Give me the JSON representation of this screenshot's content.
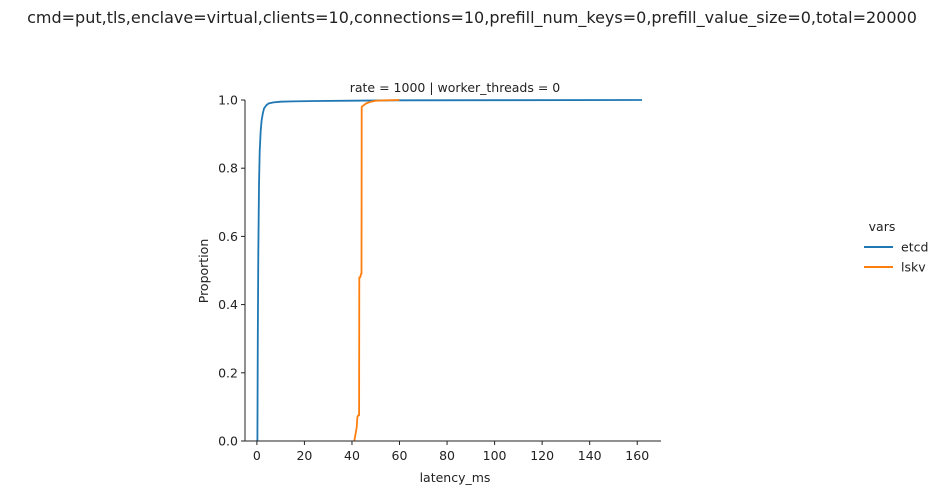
{
  "chart_data": {
    "type": "line",
    "title": "cmd=put,tls,enclave=virtual,clients=10,connections=10,prefill_num_keys=0,prefill_value_size=0,total=20000",
    "subtitle": "rate = 1000 | worker_threads = 0",
    "xlabel": "latency_ms",
    "ylabel": "Proportion",
    "xlim": [
      -5,
      170
    ],
    "ylim": [
      0,
      1
    ],
    "xticks": [
      0,
      20,
      40,
      60,
      80,
      100,
      120,
      140,
      160
    ],
    "yticks": [
      0.0,
      0.2,
      0.4,
      0.6,
      0.8,
      1.0
    ],
    "xtick_labels": [
      "0",
      "20",
      "40",
      "60",
      "80",
      "100",
      "120",
      "140",
      "160"
    ],
    "ytick_labels": [
      "0.0",
      "0.2",
      "0.4",
      "0.6",
      "0.8",
      "1.0"
    ],
    "grid": false,
    "legend": {
      "title": "vars",
      "placement": "right"
    },
    "series": [
      {
        "name": "etcd",
        "color": "#1f77b4",
        "x": [
          0.2,
          0.4,
          0.6,
          0.9,
          1.2,
          1.6,
          2.0,
          2.5,
          3.0,
          4.0,
          5.0,
          7.0,
          10.0,
          15.0,
          25.0,
          40.0,
          60.0,
          100.0,
          162.0
        ],
        "y": [
          0.0,
          0.3,
          0.55,
          0.75,
          0.85,
          0.91,
          0.94,
          0.96,
          0.975,
          0.985,
          0.99,
          0.993,
          0.995,
          0.996,
          0.997,
          0.998,
          0.999,
          0.9995,
          1.0
        ]
      },
      {
        "name": "lskv",
        "color": "#ff7f0e",
        "x": [
          41.0,
          41.5,
          42.0,
          42.3,
          42.6,
          43.0,
          43.1,
          43.5,
          43.8,
          44.0,
          44.1,
          45.0,
          46.0,
          48.0,
          50.0,
          55.0,
          60.0
        ],
        "y": [
          0.0,
          0.02,
          0.04,
          0.07,
          0.075,
          0.075,
          0.48,
          0.48,
          0.49,
          0.49,
          0.98,
          0.985,
          0.99,
          0.995,
          0.998,
          0.999,
          1.0
        ]
      }
    ]
  }
}
